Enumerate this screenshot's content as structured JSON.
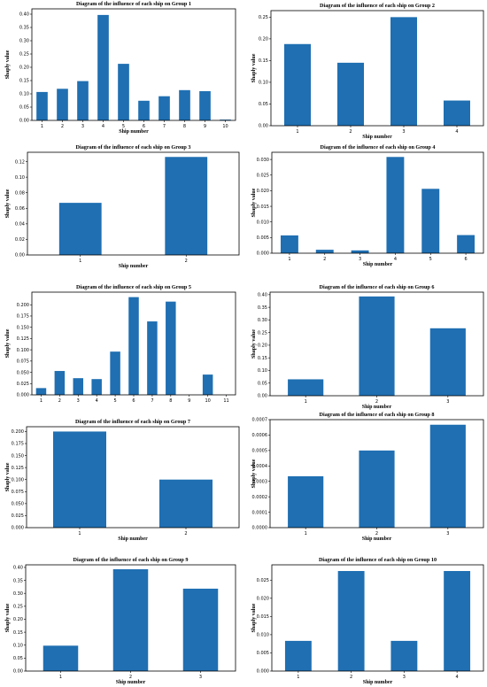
{
  "bar_color": "#1f6fb2",
  "chart_data": [
    {
      "type": "bar",
      "title": "Diagram of the influence of each ship on Group 1",
      "xlabel": "Ship number",
      "ylabel": "Shaply value",
      "categories": [
        "1",
        "2",
        "3",
        "4",
        "5",
        "6",
        "7",
        "8",
        "9",
        "10"
      ],
      "values": [
        0.107,
        0.119,
        0.148,
        0.397,
        0.213,
        0.074,
        0.091,
        0.114,
        0.11,
        0.003
      ],
      "ylim": [
        0,
        0.42
      ],
      "yticks": [
        0.0,
        0.05,
        0.1,
        0.15,
        0.2,
        0.25,
        0.3,
        0.35,
        0.4
      ],
      "ytick_labels": [
        "0.00",
        "0.05",
        "0.10",
        "0.15",
        "0.20",
        "0.25",
        "0.30",
        "0.35",
        "0.40"
      ]
    },
    {
      "type": "bar",
      "title": "Diagram of the influence of each ship on Group 2",
      "xlabel": "Ship number",
      "ylabel": "Shaply value",
      "categories": [
        "1",
        "2",
        "3",
        "4"
      ],
      "values": [
        0.188,
        0.145,
        0.25,
        0.058
      ],
      "ylim": [
        0,
        0.265
      ],
      "yticks": [
        0.0,
        0.05,
        0.1,
        0.15,
        0.2,
        0.25
      ],
      "ytick_labels": [
        "0.00",
        "0.05",
        "0.10",
        "0.15",
        "0.20",
        "0.25"
      ]
    },
    {
      "type": "bar",
      "title": "Diagram of the influence of each ship on Group 3",
      "xlabel": "Ship number",
      "ylabel": "Shaply value",
      "categories": [
        "1",
        "2"
      ],
      "values": [
        0.067,
        0.126
      ],
      "ylim": [
        0,
        0.132
      ],
      "yticks": [
        0.0,
        0.02,
        0.04,
        0.06,
        0.08,
        0.1,
        0.12
      ],
      "ytick_labels": [
        "0.00",
        "0.02",
        "0.04",
        "0.06",
        "0.08",
        "0.10",
        "0.12"
      ]
    },
    {
      "type": "bar",
      "title": "Diagram of the influence of each ship on Group 4",
      "xlabel": "Ship number",
      "ylabel": "Shaply value",
      "categories": [
        "1",
        "2",
        "3",
        "4",
        "5",
        "6"
      ],
      "values": [
        0.0057,
        0.0011,
        0.0009,
        0.0308,
        0.0206,
        0.0058
      ],
      "ylim": [
        0,
        0.0323
      ],
      "yticks": [
        0.0,
        0.005,
        0.01,
        0.015,
        0.02,
        0.025,
        0.03
      ],
      "ytick_labels": [
        "0.000",
        "0.005",
        "0.010",
        "0.015",
        "0.020",
        "0.025",
        "0.030"
      ]
    },
    {
      "type": "bar",
      "title": "Diagram of the influence of each ship on Group 5",
      "xlabel": "",
      "ylabel": "Shaply value",
      "categories": [
        "1",
        "2",
        "3",
        "4",
        "5",
        "6",
        "7",
        "8",
        "9",
        "10",
        "11"
      ],
      "values": [
        0.015,
        0.053,
        0.037,
        0.035,
        0.096,
        0.217,
        0.163,
        0.207,
        0.0,
        0.045,
        0.0
      ],
      "ylim": [
        0,
        0.228
      ],
      "yticks": [
        0.0,
        0.025,
        0.05,
        0.075,
        0.1,
        0.125,
        0.15,
        0.175,
        0.2
      ],
      "ytick_labels": [
        "0.000",
        "0.025",
        "0.050",
        "0.075",
        "0.100",
        "0.125",
        "0.150",
        "0.175",
        "0.200"
      ]
    },
    {
      "type": "bar",
      "title": "Diagram of the influence of each ship on Group 6",
      "xlabel": "Ship number",
      "ylabel": "Shaply value",
      "categories": [
        "1",
        "2",
        "3"
      ],
      "values": [
        0.065,
        0.393,
        0.267
      ],
      "ylim": [
        0,
        0.41
      ],
      "yticks": [
        0.0,
        0.05,
        0.1,
        0.15,
        0.2,
        0.25,
        0.3,
        0.35,
        0.4
      ],
      "ytick_labels": [
        "0.00",
        "0.05",
        "0.10",
        "0.15",
        "0.20",
        "0.25",
        "0.30",
        "0.35",
        "0.40"
      ]
    },
    {
      "type": "bar",
      "title": "Diagram of the influence of each ship on Group 7",
      "xlabel": "Ship number",
      "ylabel": "Shaply value",
      "categories": [
        "1",
        "2"
      ],
      "values": [
        0.2,
        0.1
      ],
      "ylim": [
        0,
        0.21
      ],
      "yticks": [
        0.0,
        0.025,
        0.05,
        0.075,
        0.1,
        0.125,
        0.15,
        0.175,
        0.2
      ],
      "ytick_labels": [
        "0.000",
        "0.025",
        "0.050",
        "0.075",
        "0.100",
        "0.125",
        "0.150",
        "0.175",
        "0.200"
      ]
    },
    {
      "type": "bar",
      "title": "Diagram of the influence of each ship on Group 8",
      "xlabel": "Ship number",
      "ylabel": "Shaply value",
      "categories": [
        "1",
        "2",
        "3"
      ],
      "values": [
        0.000333,
        0.0005,
        0.000667
      ],
      "ylim": [
        0,
        0.0007
      ],
      "yticks": [
        0.0,
        0.0001,
        0.0002,
        0.0003,
        0.0004,
        0.0005,
        0.0006,
        0.0007
      ],
      "ytick_labels": [
        "0.0000",
        "0.0001",
        "0.0002",
        "0.0003",
        "0.0004",
        "0.0005",
        "0.0006",
        "0.0007"
      ]
    },
    {
      "type": "bar",
      "title": "Diagram of the influence of each ship on Group 9",
      "xlabel": "Ship number",
      "ylabel": "Shaply value",
      "categories": [
        "1",
        "2",
        "3"
      ],
      "values": [
        0.098,
        0.393,
        0.318
      ],
      "ylim": [
        0,
        0.41
      ],
      "yticks": [
        0.0,
        0.05,
        0.1,
        0.15,
        0.2,
        0.25,
        0.3,
        0.35,
        0.4
      ],
      "ytick_labels": [
        "0.00",
        "0.05",
        "0.10",
        "0.15",
        "0.20",
        "0.25",
        "0.30",
        "0.35",
        "0.40"
      ]
    },
    {
      "type": "bar",
      "title": "Diagram of the influence of each ship on Group 10",
      "xlabel": "Ship number",
      "ylabel": "Shaply value",
      "categories": [
        "1",
        "2",
        "3",
        "4"
      ],
      "values": [
        0.0083,
        0.0275,
        0.0083,
        0.0275
      ],
      "ylim": [
        0,
        0.0292
      ],
      "yticks": [
        0.0,
        0.005,
        0.01,
        0.015,
        0.02,
        0.025
      ],
      "ytick_labels": [
        "0.000",
        "0.005",
        "0.010",
        "0.015",
        "0.020",
        "0.025"
      ]
    }
  ]
}
